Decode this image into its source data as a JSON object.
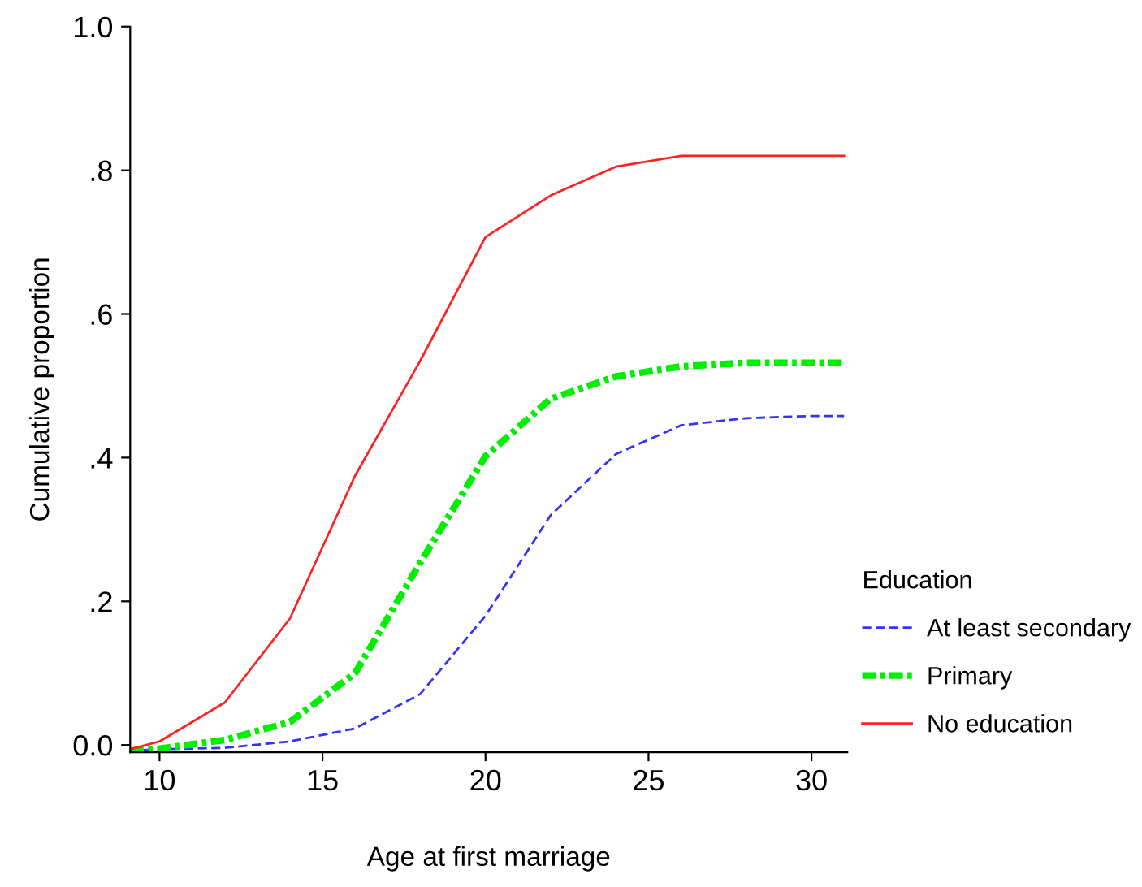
{
  "chart_data": {
    "type": "line",
    "xlabel": "Age at first marriage",
    "ylabel": "Cumulative proportion",
    "legend_title": "Education",
    "legend": "bottom right",
    "x": [
      9.1,
      10,
      12,
      14,
      16,
      18,
      20,
      22,
      24,
      26,
      28,
      30,
      31
    ],
    "xlim": [
      9.1,
      31.1
    ],
    "xticks": [
      10,
      15,
      20,
      25,
      30
    ],
    "ylim": [
      -0.01,
      1.0
    ],
    "yticks": [
      {
        "value": 0,
        "label": "0.0"
      },
      {
        "value": 0.2,
        "label": ".2"
      },
      {
        "value": 0.4,
        "label": ".4"
      },
      {
        "value": 0.6,
        "label": ".6"
      },
      {
        "value": 0.8,
        "label": ".8"
      },
      {
        "value": 1.0,
        "label": "1.0"
      }
    ],
    "grid": false,
    "series": [
      {
        "name": "At least secondary",
        "color": "#3333ff",
        "line_style": "dashed",
        "values": [
          -0.008,
          -0.006,
          -0.004,
          0.005,
          0.023,
          0.071,
          0.18,
          0.32,
          0.405,
          0.445,
          0.455,
          0.458,
          0.458
        ]
      },
      {
        "name": "Primary",
        "color": "#00ee00",
        "line_style": "dashdot",
        "values": [
          -0.008,
          -0.005,
          0.007,
          0.032,
          0.1,
          0.254,
          0.402,
          0.482,
          0.513,
          0.527,
          0.532,
          0.532,
          0.532
        ]
      },
      {
        "name": "No education",
        "color": "#ff2222",
        "line_style": "solid",
        "values": [
          -0.006,
          0.005,
          0.059,
          0.176,
          0.375,
          0.535,
          0.707,
          0.765,
          0.805,
          0.82,
          0.82,
          0.82,
          0.82
        ]
      }
    ]
  }
}
